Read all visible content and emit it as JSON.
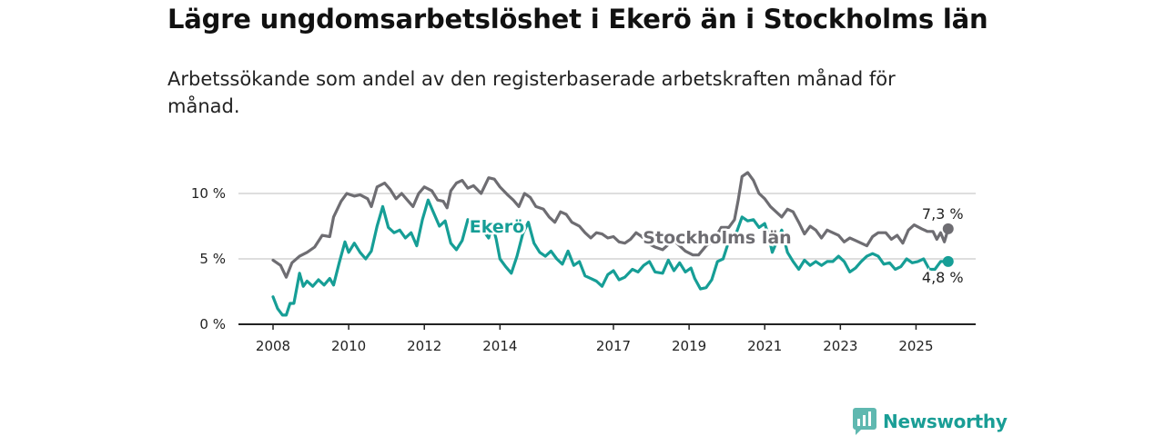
{
  "title": "Lägre ungdomsarbetslöshet i Ekerö än i Stockholms län",
  "subtitle": "Arbetssökande som andel av den registerbaserade arbetskraften månad för månad.",
  "brand": "Newsworthy",
  "colors": {
    "ekero": "#169e96",
    "stockholm": "#6e6d72",
    "grid": "#d4d4d4",
    "axis": "#222222",
    "brand": "#1a9e96"
  },
  "chart_data": {
    "type": "line",
    "xlabel": "",
    "ylabel": "",
    "xlim": [
      2008.0,
      2026.0
    ],
    "ylim": [
      0,
      10
    ],
    "x_ticks": [
      2008,
      2010,
      2012,
      2014,
      2017,
      2019,
      2021,
      2023,
      2025
    ],
    "x_tick_labels": [
      "2008",
      "2010",
      "2012",
      "2014",
      "2017",
      "2019",
      "2021",
      "2023",
      "2025"
    ],
    "y_ticks": [
      0,
      5,
      10
    ],
    "y_tick_labels": [
      "0 %",
      "5 %",
      "10 %"
    ],
    "grid": true,
    "series": [
      {
        "name": "Stockholms län",
        "color_key": "stockholm",
        "end_label": "7,3 %",
        "points": [
          [
            2008.0,
            4.9
          ],
          [
            2008.2,
            4.5
          ],
          [
            2008.35,
            3.6
          ],
          [
            2008.5,
            4.7
          ],
          [
            2008.7,
            5.2
          ],
          [
            2008.9,
            5.5
          ],
          [
            2009.1,
            5.9
          ],
          [
            2009.3,
            6.8
          ],
          [
            2009.5,
            6.7
          ],
          [
            2009.6,
            8.2
          ],
          [
            2009.8,
            9.4
          ],
          [
            2009.95,
            10.0
          ],
          [
            2010.15,
            9.8
          ],
          [
            2010.3,
            9.9
          ],
          [
            2010.5,
            9.6
          ],
          [
            2010.6,
            9.0
          ],
          [
            2010.75,
            10.5
          ],
          [
            2010.95,
            10.8
          ],
          [
            2011.1,
            10.3
          ],
          [
            2011.25,
            9.6
          ],
          [
            2011.4,
            10.0
          ],
          [
            2011.55,
            9.5
          ],
          [
            2011.7,
            9.0
          ],
          [
            2011.85,
            10.0
          ],
          [
            2012.0,
            10.5
          ],
          [
            2012.2,
            10.2
          ],
          [
            2012.35,
            9.5
          ],
          [
            2012.5,
            9.4
          ],
          [
            2012.6,
            8.9
          ],
          [
            2012.7,
            10.2
          ],
          [
            2012.85,
            10.8
          ],
          [
            2013.0,
            11.0
          ],
          [
            2013.15,
            10.4
          ],
          [
            2013.3,
            10.6
          ],
          [
            2013.5,
            10.0
          ],
          [
            2013.7,
            11.2
          ],
          [
            2013.85,
            11.1
          ],
          [
            2014.0,
            10.5
          ],
          [
            2014.2,
            9.9
          ],
          [
            2014.35,
            9.5
          ],
          [
            2014.5,
            9.0
          ],
          [
            2014.65,
            10.0
          ],
          [
            2014.8,
            9.7
          ],
          [
            2014.95,
            9.0
          ],
          [
            2015.15,
            8.8
          ],
          [
            2015.3,
            8.2
          ],
          [
            2015.45,
            7.8
          ],
          [
            2015.6,
            8.6
          ],
          [
            2015.75,
            8.4
          ],
          [
            2015.9,
            7.8
          ],
          [
            2016.1,
            7.5
          ],
          [
            2016.25,
            7.0
          ],
          [
            2016.4,
            6.6
          ],
          [
            2016.55,
            7.0
          ],
          [
            2016.7,
            6.9
          ],
          [
            2016.85,
            6.6
          ],
          [
            2017.0,
            6.7
          ],
          [
            2017.15,
            6.3
          ],
          [
            2017.3,
            6.2
          ],
          [
            2017.45,
            6.5
          ],
          [
            2017.6,
            7.0
          ],
          [
            2017.75,
            6.7
          ],
          [
            2017.9,
            6.2
          ],
          [
            2018.1,
            5.9
          ],
          [
            2018.3,
            5.7
          ],
          [
            2018.45,
            6.1
          ],
          [
            2018.6,
            6.4
          ],
          [
            2018.75,
            6.0
          ],
          [
            2018.9,
            5.6
          ],
          [
            2019.1,
            5.3
          ],
          [
            2019.25,
            5.3
          ],
          [
            2019.45,
            6.0
          ],
          [
            2019.65,
            6.4
          ],
          [
            2019.85,
            7.4
          ],
          [
            2020.05,
            7.4
          ],
          [
            2020.2,
            8.0
          ],
          [
            2020.3,
            9.5
          ],
          [
            2020.4,
            11.3
          ],
          [
            2020.55,
            11.6
          ],
          [
            2020.7,
            11.0
          ],
          [
            2020.85,
            10.0
          ],
          [
            2021.0,
            9.6
          ],
          [
            2021.15,
            9.0
          ],
          [
            2021.3,
            8.6
          ],
          [
            2021.45,
            8.2
          ],
          [
            2021.6,
            8.8
          ],
          [
            2021.75,
            8.6
          ],
          [
            2021.9,
            7.8
          ],
          [
            2022.05,
            6.9
          ],
          [
            2022.2,
            7.5
          ],
          [
            2022.35,
            7.2
          ],
          [
            2022.5,
            6.6
          ],
          [
            2022.65,
            7.2
          ],
          [
            2022.8,
            7.0
          ],
          [
            2022.95,
            6.8
          ],
          [
            2023.1,
            6.3
          ],
          [
            2023.25,
            6.6
          ],
          [
            2023.4,
            6.4
          ],
          [
            2023.55,
            6.2
          ],
          [
            2023.7,
            6.0
          ],
          [
            2023.85,
            6.7
          ],
          [
            2024.0,
            7.0
          ],
          [
            2024.2,
            7.0
          ],
          [
            2024.35,
            6.5
          ],
          [
            2024.5,
            6.8
          ],
          [
            2024.65,
            6.2
          ],
          [
            2024.8,
            7.2
          ],
          [
            2024.95,
            7.6
          ],
          [
            2025.15,
            7.3
          ],
          [
            2025.3,
            7.1
          ],
          [
            2025.45,
            7.1
          ],
          [
            2025.55,
            6.5
          ],
          [
            2025.65,
            7.0
          ],
          [
            2025.75,
            6.3
          ],
          [
            2025.85,
            7.3
          ]
        ]
      },
      {
        "name": "Ekerö",
        "color_key": "ekero",
        "end_label": "4,8 %",
        "points": [
          [
            2008.0,
            2.1
          ],
          [
            2008.12,
            1.2
          ],
          [
            2008.25,
            0.7
          ],
          [
            2008.35,
            0.7
          ],
          [
            2008.45,
            1.6
          ],
          [
            2008.55,
            1.6
          ],
          [
            2008.7,
            3.9
          ],
          [
            2008.8,
            2.9
          ],
          [
            2008.9,
            3.3
          ],
          [
            2009.05,
            2.9
          ],
          [
            2009.2,
            3.4
          ],
          [
            2009.35,
            3.0
          ],
          [
            2009.5,
            3.5
          ],
          [
            2009.6,
            3.0
          ],
          [
            2009.75,
            4.7
          ],
          [
            2009.9,
            6.3
          ],
          [
            2010.0,
            5.5
          ],
          [
            2010.15,
            6.2
          ],
          [
            2010.3,
            5.5
          ],
          [
            2010.45,
            5.0
          ],
          [
            2010.6,
            5.6
          ],
          [
            2010.75,
            7.5
          ],
          [
            2010.9,
            9.0
          ],
          [
            2011.05,
            7.4
          ],
          [
            2011.2,
            7.0
          ],
          [
            2011.35,
            7.2
          ],
          [
            2011.5,
            6.6
          ],
          [
            2011.65,
            7.0
          ],
          [
            2011.8,
            6.0
          ],
          [
            2011.95,
            8.0
          ],
          [
            2012.1,
            9.5
          ],
          [
            2012.25,
            8.5
          ],
          [
            2012.4,
            7.5
          ],
          [
            2012.55,
            7.9
          ],
          [
            2012.7,
            6.2
          ],
          [
            2012.85,
            5.7
          ],
          [
            2013.0,
            6.4
          ],
          [
            2013.15,
            8.0
          ],
          [
            2013.3,
            7.7
          ],
          [
            2013.45,
            7.7
          ],
          [
            2013.6,
            7.0
          ],
          [
            2013.7,
            6.6
          ],
          [
            2013.8,
            7.6
          ],
          [
            2013.9,
            6.5
          ],
          [
            2014.0,
            5.0
          ],
          [
            2014.15,
            4.4
          ],
          [
            2014.3,
            3.9
          ],
          [
            2014.45,
            5.2
          ],
          [
            2014.6,
            6.9
          ],
          [
            2014.75,
            7.8
          ],
          [
            2014.9,
            6.2
          ],
          [
            2015.05,
            5.5
          ],
          [
            2015.2,
            5.2
          ],
          [
            2015.35,
            5.6
          ],
          [
            2015.5,
            5.0
          ],
          [
            2015.65,
            4.6
          ],
          [
            2015.8,
            5.6
          ],
          [
            2015.95,
            4.5
          ],
          [
            2016.1,
            4.8
          ],
          [
            2016.25,
            3.7
          ],
          [
            2016.4,
            3.5
          ],
          [
            2016.55,
            3.3
          ],
          [
            2016.7,
            2.9
          ],
          [
            2016.85,
            3.8
          ],
          [
            2017.0,
            4.1
          ],
          [
            2017.15,
            3.4
          ],
          [
            2017.3,
            3.6
          ],
          [
            2017.5,
            4.2
          ],
          [
            2017.65,
            4.0
          ],
          [
            2017.8,
            4.5
          ],
          [
            2017.95,
            4.8
          ],
          [
            2018.1,
            4.0
          ],
          [
            2018.3,
            3.9
          ],
          [
            2018.45,
            4.9
          ],
          [
            2018.6,
            4.1
          ],
          [
            2018.75,
            4.7
          ],
          [
            2018.9,
            4.0
          ],
          [
            2019.05,
            4.3
          ],
          [
            2019.15,
            3.5
          ],
          [
            2019.3,
            2.7
          ],
          [
            2019.45,
            2.8
          ],
          [
            2019.6,
            3.4
          ],
          [
            2019.75,
            4.8
          ],
          [
            2019.9,
            5.0
          ],
          [
            2020.1,
            6.8
          ],
          [
            2020.25,
            7.0
          ],
          [
            2020.4,
            8.2
          ],
          [
            2020.55,
            7.9
          ],
          [
            2020.7,
            8.0
          ],
          [
            2020.85,
            7.4
          ],
          [
            2021.0,
            7.7
          ],
          [
            2021.1,
            6.8
          ],
          [
            2021.2,
            5.5
          ],
          [
            2021.3,
            6.2
          ],
          [
            2021.45,
            7.2
          ],
          [
            2021.6,
            5.5
          ],
          [
            2021.75,
            4.8
          ],
          [
            2021.9,
            4.2
          ],
          [
            2022.05,
            4.9
          ],
          [
            2022.2,
            4.5
          ],
          [
            2022.35,
            4.8
          ],
          [
            2022.5,
            4.5
          ],
          [
            2022.65,
            4.8
          ],
          [
            2022.8,
            4.8
          ],
          [
            2022.95,
            5.2
          ],
          [
            2023.1,
            4.8
          ],
          [
            2023.25,
            4.0
          ],
          [
            2023.4,
            4.3
          ],
          [
            2023.55,
            4.8
          ],
          [
            2023.7,
            5.2
          ],
          [
            2023.85,
            5.4
          ],
          [
            2024.0,
            5.2
          ],
          [
            2024.15,
            4.6
          ],
          [
            2024.3,
            4.7
          ],
          [
            2024.45,
            4.2
          ],
          [
            2024.6,
            4.4
          ],
          [
            2024.75,
            5.0
          ],
          [
            2024.9,
            4.7
          ],
          [
            2025.05,
            4.8
          ],
          [
            2025.2,
            5.0
          ],
          [
            2025.35,
            4.2
          ],
          [
            2025.5,
            4.2
          ],
          [
            2025.65,
            4.8
          ],
          [
            2025.85,
            4.8
          ]
        ]
      }
    ]
  }
}
